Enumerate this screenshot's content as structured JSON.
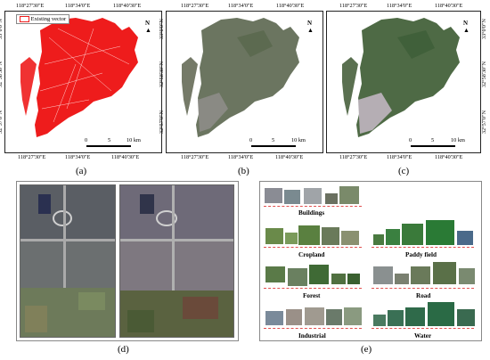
{
  "coords": {
    "top": [
      "118°27'30\"E",
      "118°34'0\"E",
      "118°40'30\"E"
    ],
    "bottom": [
      "118°27'30\"E",
      "118°34'0\"E",
      "118°40'30\"E"
    ],
    "left": [
      "33°0'0\"N",
      "32°58'30\"N",
      "32°57'0\"N"
    ],
    "right": [
      "33°0'0\"N",
      "32°58'30\"N",
      "32°57'0\"N"
    ]
  },
  "legend": {
    "existing_vector": "Existing vector"
  },
  "north": "N",
  "scale": {
    "zero": "0",
    "mid": "5",
    "end": "10 km"
  },
  "panels": {
    "a": "(a)",
    "b": "(b)",
    "c": "(c)",
    "d": "(d)",
    "e": "(e)"
  },
  "categories": {
    "buildings": "Buildings",
    "cropland": "Cropland",
    "paddy": "Paddy field",
    "forest": "Forest",
    "road": "Road",
    "industrial": "Industrial",
    "water": "Water"
  },
  "colors": {
    "vector_red": "#ee1c1c",
    "dash_red": "#e05050",
    "map_b": "#6b7560",
    "map_c": "#4e6a45"
  }
}
